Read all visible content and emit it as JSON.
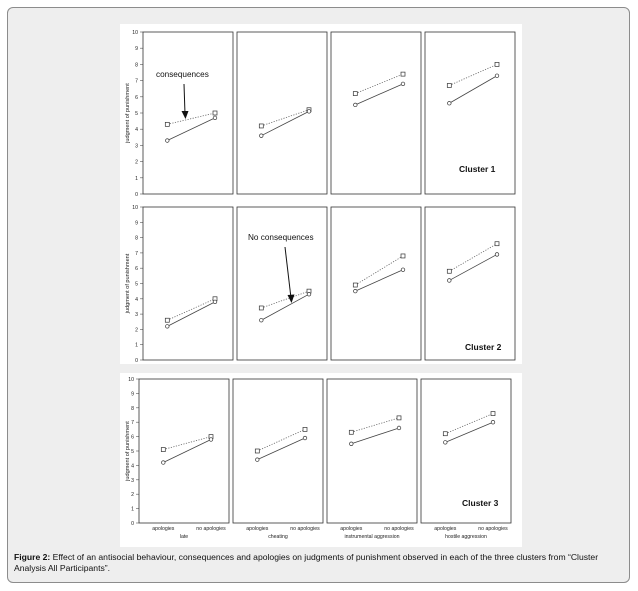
{
  "figure": {
    "caption_label": "Figure 2:",
    "caption_text": " Effect of an antisocial behaviour, consequences and apologies on judgments of punishment observed in each of the three clusters from “Cluster Analysis All Participants”."
  },
  "chart_data": [
    {
      "type": "line",
      "title": "Cluster 1",
      "ylabel": "judgment of punishment",
      "ylim": [
        0,
        10
      ],
      "yticks": [
        "0",
        "1",
        "2",
        "3",
        "4",
        "5",
        "6",
        "7",
        "8",
        "9",
        "10"
      ],
      "categories": [
        "apologies",
        "no apologies"
      ],
      "annotation": {
        "text": "consequences",
        "panel": 0
      },
      "panels": [
        {
          "behaviour": "late",
          "series": [
            {
              "values": [
                4.3,
                5.0
              ],
              "style": "square-dotted"
            },
            {
              "values": [
                3.3,
                4.7
              ],
              "style": "circle-solid"
            }
          ]
        },
        {
          "behaviour": "cheating",
          "series": [
            {
              "values": [
                4.2,
                5.2
              ],
              "style": "square-dotted"
            },
            {
              "values": [
                3.6,
                5.1
              ],
              "style": "circle-solid"
            }
          ]
        },
        {
          "behaviour": "instrumental aggression",
          "series": [
            {
              "values": [
                6.2,
                7.4
              ],
              "style": "square-dotted"
            },
            {
              "values": [
                5.5,
                6.8
              ],
              "style": "circle-solid"
            }
          ]
        },
        {
          "behaviour": "hostile aggression",
          "series": [
            {
              "values": [
                6.7,
                8.0
              ],
              "style": "square-dotted"
            },
            {
              "values": [
                5.6,
                7.3
              ],
              "style": "circle-solid"
            }
          ]
        }
      ]
    },
    {
      "type": "line",
      "title": "Cluster 2",
      "ylabel": "judgment of punishment",
      "ylim": [
        0,
        10
      ],
      "yticks": [
        "0",
        "1",
        "2",
        "3",
        "4",
        "5",
        "6",
        "7",
        "8",
        "9",
        "10"
      ],
      "categories": [
        "apologies",
        "no apologies"
      ],
      "annotation": {
        "text": "No consequences",
        "panel": 1
      },
      "panels": [
        {
          "behaviour": "late",
          "series": [
            {
              "values": [
                2.6,
                4.0
              ],
              "style": "square-dotted"
            },
            {
              "values": [
                2.2,
                3.8
              ],
              "style": "circle-solid"
            }
          ]
        },
        {
          "behaviour": "cheating",
          "series": [
            {
              "values": [
                3.4,
                4.5
              ],
              "style": "square-dotted"
            },
            {
              "values": [
                2.6,
                4.3
              ],
              "style": "circle-solid"
            }
          ]
        },
        {
          "behaviour": "instrumental aggression",
          "series": [
            {
              "values": [
                4.9,
                6.8
              ],
              "style": "square-dotted"
            },
            {
              "values": [
                4.5,
                5.9
              ],
              "style": "circle-solid"
            }
          ]
        },
        {
          "behaviour": "hostile aggression",
          "series": [
            {
              "values": [
                5.8,
                7.6
              ],
              "style": "square-dotted"
            },
            {
              "values": [
                5.2,
                6.9
              ],
              "style": "circle-solid"
            }
          ]
        }
      ]
    },
    {
      "type": "line",
      "title": "Cluster 3",
      "ylabel": "judgment of punishment",
      "ylim": [
        0,
        10
      ],
      "yticks": [
        "0",
        "1",
        "2",
        "3",
        "4",
        "5",
        "6",
        "7",
        "8",
        "9",
        "10"
      ],
      "categories": [
        "apologies",
        "no apologies"
      ],
      "panels": [
        {
          "behaviour": "late",
          "series": [
            {
              "values": [
                5.1,
                6.0
              ],
              "style": "square-dotted"
            },
            {
              "values": [
                4.2,
                5.8
              ],
              "style": "circle-solid"
            }
          ]
        },
        {
          "behaviour": "cheating",
          "series": [
            {
              "values": [
                5.0,
                6.5
              ],
              "style": "square-dotted"
            },
            {
              "values": [
                4.4,
                5.9
              ],
              "style": "circle-solid"
            }
          ]
        },
        {
          "behaviour": "instrumental aggression",
          "series": [
            {
              "values": [
                6.3,
                7.3
              ],
              "style": "square-dotted"
            },
            {
              "values": [
                5.5,
                6.6
              ],
              "style": "circle-solid"
            }
          ]
        },
        {
          "behaviour": "hostile aggression",
          "series": [
            {
              "values": [
                6.2,
                7.6
              ],
              "style": "square-dotted"
            },
            {
              "values": [
                5.6,
                7.0
              ],
              "style": "circle-solid"
            }
          ]
        }
      ]
    }
  ]
}
